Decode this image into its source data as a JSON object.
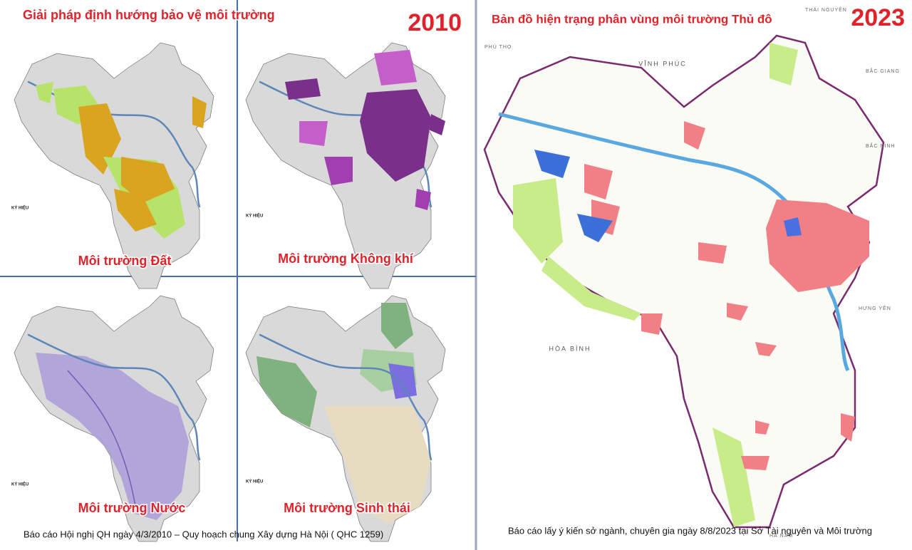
{
  "left_panel": {
    "title": "Giải pháp định hướng bảo vệ môi trường",
    "year": "2010",
    "maps": [
      {
        "label": "Môi trường Đất",
        "legend_title": "KÝ HIỆU"
      },
      {
        "label": "Môi trường Không khí",
        "legend_title": "KÝ HIỆU"
      },
      {
        "label": "Môi trường Nước",
        "legend_title": "KÝ HIỆU"
      },
      {
        "label": "Môi trường Sinh thái",
        "legend_title": "KÝ HIỆU"
      }
    ],
    "source": "Báo cáo  Hội nghị QH ngày 4/3/2010 – Quy hoạch chung Xây dựng Hà Nội ( QHC 1259)"
  },
  "right_panel": {
    "title": "Bản đồ hiện trạng phân vùng môi trường Thủ đô",
    "year": "2023",
    "places": [
      "THÁI NGUYÊN",
      "PHÚ THỌ",
      "VĨNH PHÚC",
      "BẮC GIANG",
      "BẮC NINH",
      "HƯNG YÊN",
      "HÒA BÌNH",
      "HÀ NAM"
    ],
    "source": "Báo cáo lấy ý kiến sở ngành, chuyên gia ngày 8/8/2023 tại Sở Tài nguyên và Môi trường"
  }
}
